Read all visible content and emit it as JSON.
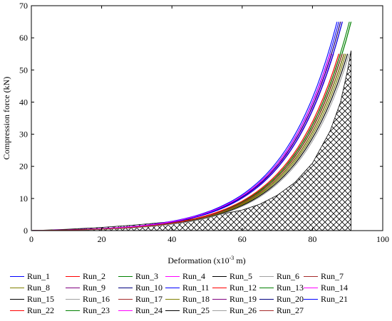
{
  "chart_data": {
    "type": "line",
    "xlabel": "Deformation (x10",
    "xlabel_sup": "-3",
    "xlabel_tail": " m)",
    "ylabel": "Compression force (kN)",
    "xlim": [
      0,
      100
    ],
    "ylim": [
      0,
      70
    ],
    "xticks": [
      0,
      20,
      40,
      60,
      80,
      100
    ],
    "yticks": [
      0,
      10,
      20,
      30,
      40,
      50,
      60,
      70
    ],
    "grid": false,
    "legend_position": "bottom",
    "hatched_envelope": {
      "pattern": "crosshatch",
      "x": [
        0,
        10,
        20,
        30,
        40,
        50,
        60,
        65,
        70,
        75,
        80,
        85,
        88,
        90,
        91,
        91
      ],
      "y": [
        0,
        0.4,
        1.0,
        1.8,
        2.8,
        4.2,
        6.4,
        8.2,
        11.0,
        15.0,
        21.0,
        31.0,
        40.0,
        50.0,
        56.0,
        0
      ]
    },
    "series": [
      {
        "name": "Run_1",
        "color": "#0000ff",
        "x_end": 87.0,
        "y_end": 65
      },
      {
        "name": "Run_2",
        "color": "#ff0000",
        "x_end": 88.5,
        "y_end": 65
      },
      {
        "name": "Run_3",
        "color": "#008000",
        "x_end": 91.0,
        "y_end": 65
      },
      {
        "name": "Run_4",
        "color": "#ff00ff",
        "x_end": 85.0,
        "y_end": 55
      },
      {
        "name": "Run_5",
        "color": "#000000",
        "x_end": 89.0,
        "y_end": 55
      },
      {
        "name": "Run_6",
        "color": "#a0a0a0",
        "x_end": 89.5,
        "y_end": 55
      },
      {
        "name": "Run_7",
        "color": "#a52a2a",
        "x_end": 88.0,
        "y_end": 55
      },
      {
        "name": "Run_8",
        "color": "#808000",
        "x_end": 89.5,
        "y_end": 55
      },
      {
        "name": "Run_9",
        "color": "#800080",
        "x_end": 85.5,
        "y_end": 55
      },
      {
        "name": "Run_10",
        "color": "#000080",
        "x_end": 88.5,
        "y_end": 65
      },
      {
        "name": "Run_11",
        "color": "#0000ff",
        "x_end": 87.5,
        "y_end": 65
      },
      {
        "name": "Run_12",
        "color": "#ff0000",
        "x_end": 88.0,
        "y_end": 65
      },
      {
        "name": "Run_13",
        "color": "#008000",
        "x_end": 90.5,
        "y_end": 65
      },
      {
        "name": "Run_14",
        "color": "#ff00ff",
        "x_end": 85.5,
        "y_end": 55
      },
      {
        "name": "Run_15",
        "color": "#000000",
        "x_end": 89.0,
        "y_end": 55
      },
      {
        "name": "Run_16",
        "color": "#a0a0a0",
        "x_end": 90.0,
        "y_end": 55
      },
      {
        "name": "Run_17",
        "color": "#a52a2a",
        "x_end": 87.5,
        "y_end": 55
      },
      {
        "name": "Run_18",
        "color": "#808000",
        "x_end": 89.0,
        "y_end": 55
      },
      {
        "name": "Run_19",
        "color": "#800080",
        "x_end": 86.0,
        "y_end": 55
      },
      {
        "name": "Run_20",
        "color": "#000080",
        "x_end": 88.0,
        "y_end": 65
      },
      {
        "name": "Run_21",
        "color": "#0000ff",
        "x_end": 88.5,
        "y_end": 65
      },
      {
        "name": "Run_22",
        "color": "#ff0000",
        "x_end": 87.5,
        "y_end": 55
      },
      {
        "name": "Run_23",
        "color": "#008000",
        "x_end": 91.0,
        "y_end": 65
      },
      {
        "name": "Run_24",
        "color": "#ff00ff",
        "x_end": 85.0,
        "y_end": 55
      },
      {
        "name": "Run_25",
        "color": "#000000",
        "x_end": 90.0,
        "y_end": 55
      },
      {
        "name": "Run_26",
        "color": "#a0a0a0",
        "x_end": 90.5,
        "y_end": 55
      },
      {
        "name": "Run_27",
        "color": "#a52a2a",
        "x_end": 88.5,
        "y_end": 55
      }
    ]
  }
}
